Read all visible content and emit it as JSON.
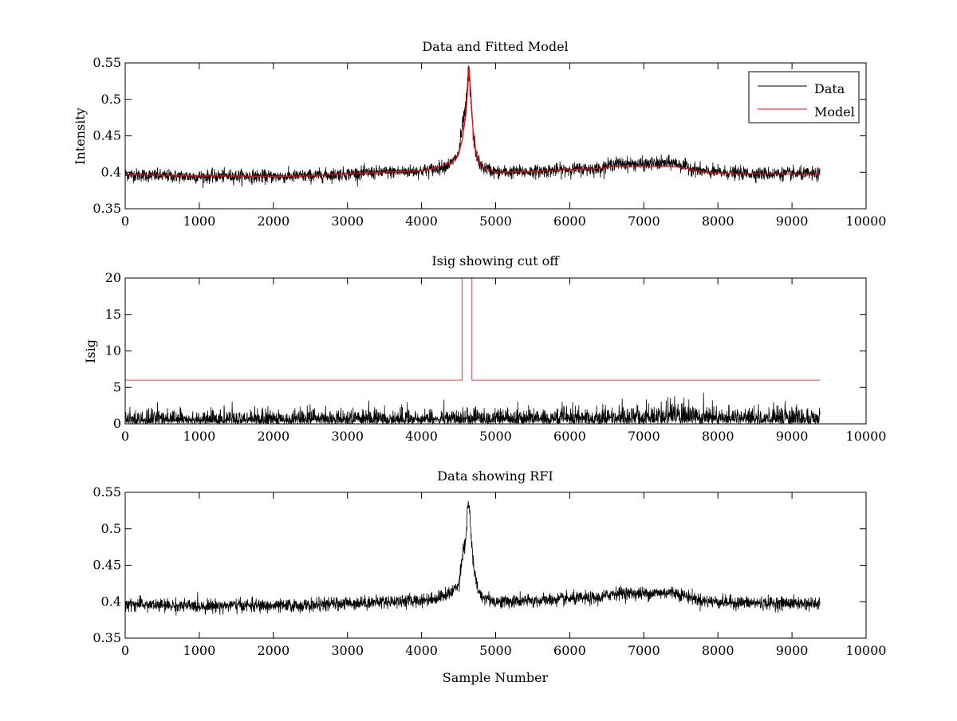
{
  "figure": {
    "xlabel": "Sample Number",
    "colors": {
      "data": "#000000",
      "model": "#ff0000",
      "axes": "#000000",
      "background": "#ffffff"
    }
  },
  "chart_data": [
    {
      "type": "line",
      "title": "Data and Fitted Model",
      "xlabel": "",
      "ylabel": "Intensity",
      "xlim": [
        0,
        10000
      ],
      "ylim": [
        0.35,
        0.55
      ],
      "xticks": [
        0,
        1000,
        2000,
        3000,
        4000,
        5000,
        6000,
        7000,
        8000,
        9000,
        10000
      ],
      "xtick_labels": [
        "0",
        "1000",
        "2000",
        "3000",
        "4000",
        "5000",
        "6000",
        "7000",
        "8000",
        "9000",
        "10000"
      ],
      "yticks": [
        0.35,
        0.4,
        0.45,
        0.5,
        0.55
      ],
      "ytick_labels": [
        "0.35",
        "0.4",
        "0.45",
        "0.5",
        "0.55"
      ],
      "legend": {
        "position": "top-right",
        "entries": [
          "Data",
          "Model"
        ]
      },
      "series": [
        {
          "name": "Data",
          "color": "#000000",
          "kind": "noisy",
          "noise": 0.0045,
          "x": [
            0,
            500,
            1000,
            1500,
            2000,
            2500,
            3000,
            3500,
            4000,
            4200,
            4400,
            4500,
            4550,
            4600,
            4630,
            4650,
            4700,
            4750,
            4800,
            5000,
            5500,
            6000,
            6400,
            6600,
            7000,
            7400,
            7600,
            7800,
            8200,
            8600,
            9000,
            9380
          ],
          "y": [
            0.397,
            0.395,
            0.394,
            0.395,
            0.394,
            0.395,
            0.398,
            0.4,
            0.402,
            0.405,
            0.412,
            0.425,
            0.462,
            0.49,
            0.538,
            0.52,
            0.448,
            0.42,
            0.408,
            0.4,
            0.401,
            0.404,
            0.405,
            0.412,
            0.411,
            0.413,
            0.407,
            0.401,
            0.399,
            0.398,
            0.398,
            0.397
          ]
        },
        {
          "name": "Model",
          "color": "#ff0000",
          "kind": "smooth",
          "x": [
            0,
            500,
            1000,
            1500,
            2000,
            2500,
            3000,
            3500,
            4000,
            4200,
            4400,
            4500,
            4550,
            4600,
            4620,
            4640,
            4660,
            4700,
            4750,
            4800,
            5000,
            5500,
            6000,
            6400,
            6600,
            7000,
            7400,
            7600,
            7800,
            8200,
            8600,
            9000,
            9380
          ],
          "y": [
            0.397,
            0.396,
            0.395,
            0.395,
            0.394,
            0.395,
            0.398,
            0.4,
            0.402,
            0.406,
            0.413,
            0.425,
            0.445,
            0.48,
            0.51,
            0.545,
            0.515,
            0.45,
            0.42,
            0.408,
            0.4,
            0.401,
            0.404,
            0.405,
            0.408,
            0.408,
            0.408,
            0.405,
            0.4,
            0.398,
            0.398,
            0.398,
            0.397
          ]
        }
      ]
    },
    {
      "type": "line",
      "title": "Isig showing cut off",
      "xlabel": "",
      "ylabel": "Isig",
      "xlim": [
        0,
        10000
      ],
      "ylim": [
        0,
        20
      ],
      "xticks": [
        0,
        1000,
        2000,
        3000,
        4000,
        5000,
        6000,
        7000,
        8000,
        9000,
        10000
      ],
      "xtick_labels": [
        "0",
        "1000",
        "2000",
        "3000",
        "4000",
        "5000",
        "6000",
        "7000",
        "8000",
        "9000",
        "10000"
      ],
      "yticks": [
        0,
        5,
        10,
        15,
        20
      ],
      "ytick_labels": [
        "0",
        "5",
        "10",
        "15",
        "20"
      ],
      "series": [
        {
          "name": "Isig",
          "color": "#000000",
          "kind": "abs-noise",
          "x": [
            0,
            1000,
            2000,
            3000,
            4000,
            5000,
            6000,
            7000,
            7400,
            7800,
            8500,
            9380
          ],
          "scale": [
            0.9,
            0.9,
            0.9,
            0.9,
            0.9,
            1.0,
            1.0,
            1.15,
            1.4,
            1.3,
            1.0,
            0.95
          ]
        },
        {
          "name": "Cut off",
          "color": "#ff0000",
          "kind": "step",
          "x": [
            0,
            4550,
            4550,
            4680,
            4680,
            9380
          ],
          "y": [
            6,
            6,
            20,
            20,
            6,
            6
          ]
        }
      ]
    },
    {
      "type": "line",
      "title": "Data showing RFI",
      "xlabel": "Sample Number",
      "ylabel": "",
      "xlim": [
        0,
        10000
      ],
      "ylim": [
        0.35,
        0.55
      ],
      "xticks": [
        0,
        1000,
        2000,
        3000,
        4000,
        5000,
        6000,
        7000,
        8000,
        9000,
        10000
      ],
      "xtick_labels": [
        "0",
        "1000",
        "2000",
        "3000",
        "4000",
        "5000",
        "6000",
        "7000",
        "8000",
        "9000",
        "10000"
      ],
      "yticks": [
        0.35,
        0.4,
        0.45,
        0.5,
        0.55
      ],
      "ytick_labels": [
        "0.35",
        "0.4",
        "0.45",
        "0.5",
        "0.55"
      ],
      "series": [
        {
          "name": "Data",
          "color": "#000000",
          "kind": "noisy",
          "noise": 0.0045,
          "x": [
            0,
            500,
            1000,
            1500,
            2000,
            2500,
            3000,
            3500,
            4000,
            4200,
            4400,
            4500,
            4550,
            4600,
            4630,
            4650,
            4700,
            4750,
            4800,
            5000,
            5500,
            6000,
            6400,
            6600,
            7000,
            7400,
            7600,
            7800,
            8200,
            8600,
            9000,
            9380
          ],
          "y": [
            0.397,
            0.395,
            0.394,
            0.395,
            0.394,
            0.395,
            0.398,
            0.4,
            0.402,
            0.405,
            0.412,
            0.425,
            0.462,
            0.49,
            0.538,
            0.52,
            0.448,
            0.42,
            0.408,
            0.4,
            0.401,
            0.404,
            0.405,
            0.412,
            0.411,
            0.413,
            0.407,
            0.401,
            0.399,
            0.398,
            0.398,
            0.397
          ]
        }
      ]
    }
  ]
}
